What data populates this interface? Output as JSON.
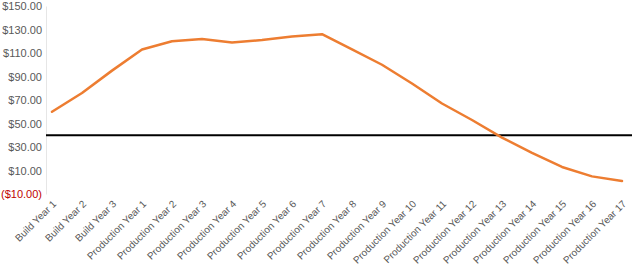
{
  "chart_data": {
    "type": "line",
    "categories": [
      "Build Year 1",
      "Build Year 2",
      "Build Year 3",
      "Production Year 1",
      "Production Year 2",
      "Production Year 3",
      "Production Year 4",
      "Production Year 5",
      "Production Year 6",
      "Production Year 7",
      "Production Year 8",
      "Production Year 9",
      "Production Year 10",
      "Production Year 11",
      "Production Year 12",
      "Production Year 13",
      "Production Year 14",
      "Production Year 15",
      "Production Year 16",
      "Production Year 17"
    ],
    "series": [
      {
        "color": "#ed7d31",
        "values": [
          60,
          76,
          95,
          113,
          120,
          122,
          119,
          121,
          124,
          126,
          113,
          100,
          84,
          67,
          53,
          38,
          25,
          13,
          5,
          1
        ]
      }
    ],
    "reference_line": {
      "value": 40,
      "color": "#000000"
    },
    "ylim": [
      -10,
      150
    ],
    "yticks": [
      {
        "value": -10,
        "label": "($10.00)"
      },
      {
        "value": 10,
        "label": "$10.00"
      },
      {
        "value": 30,
        "label": "$30.00"
      },
      {
        "value": 50,
        "label": "$50.00"
      },
      {
        "value": 70,
        "label": "$70.00"
      },
      {
        "value": 90,
        "label": "$90.00"
      },
      {
        "value": 110,
        "label": "$110.00"
      },
      {
        "value": 130,
        "label": "$130.00"
      },
      {
        "value": 150,
        "label": "$150.00"
      }
    ],
    "grid": false
  }
}
